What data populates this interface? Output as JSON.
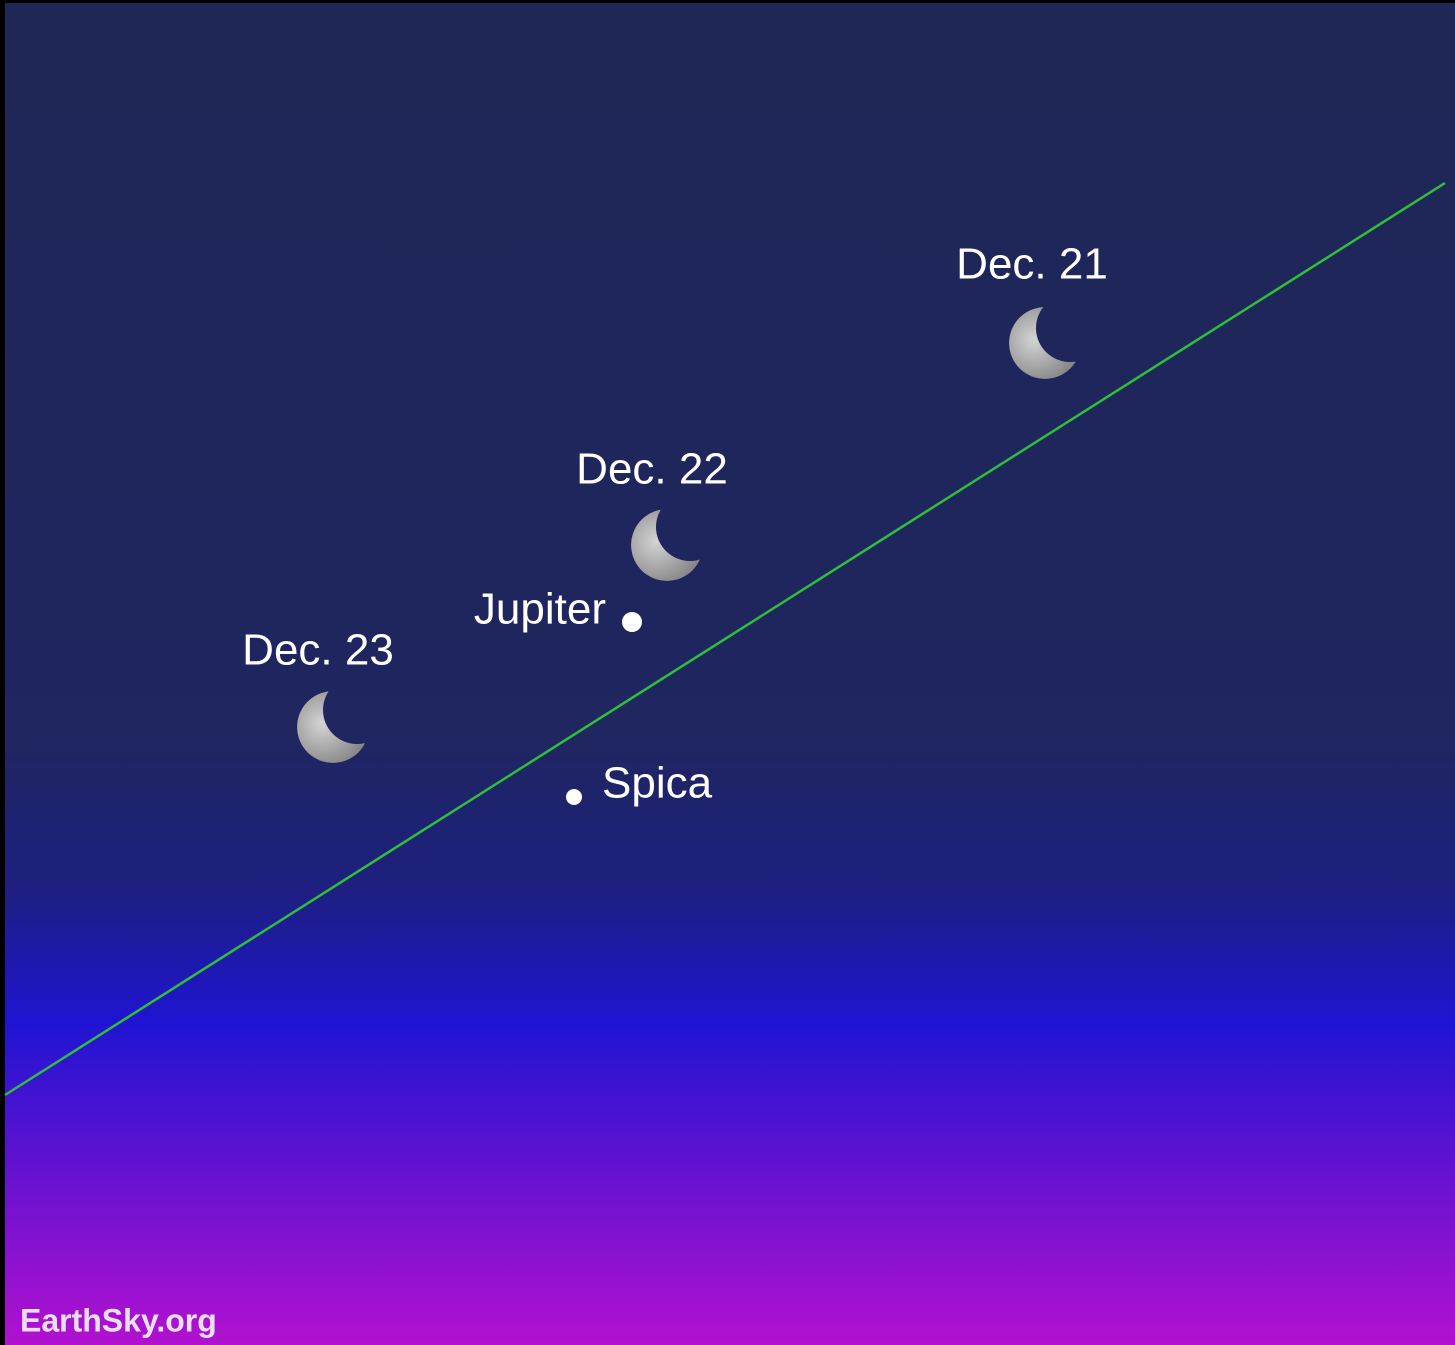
{
  "labels": {
    "moons": [
      "Dec. 21",
      "Dec. 22",
      "Dec. 23"
    ],
    "jupiter": "Jupiter",
    "spica": "Spica"
  },
  "credit": "EarthSky.org"
}
